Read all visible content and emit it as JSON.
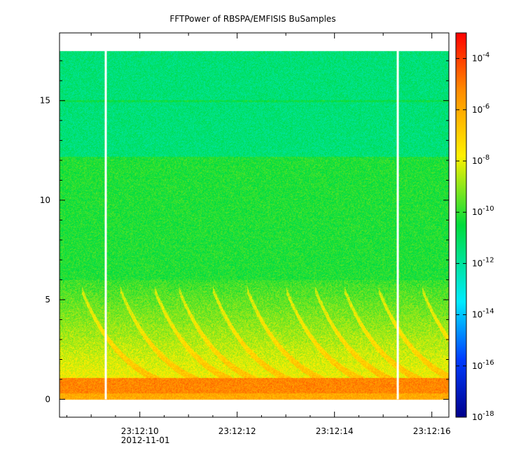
{
  "chart_data": {
    "type": "heatmap",
    "title": "FFTPower of RBSPA/EMFISIS  BuSamples",
    "xlabel": "",
    "ylabel": "",
    "x_ticks": [
      {
        "label": "23:12:10",
        "sublabel": "2012-11-01",
        "t": 10
      },
      {
        "label": "23:12:12",
        "t": 12
      },
      {
        "label": "23:12:14",
        "t": 14
      },
      {
        "label": "23:12:16",
        "t": 16
      }
    ],
    "xlim": [
      8.35,
      16.35
    ],
    "ylim": [
      -0.9,
      18.4
    ],
    "y_ticks": [
      0,
      5,
      10,
      15
    ],
    "colorbar": {
      "scale": "log",
      "range": [
        1e-18,
        0.001
      ],
      "ticks": [
        {
          "base": "10",
          "exp": "-4"
        },
        {
          "base": "10",
          "exp": "-6"
        },
        {
          "base": "10",
          "exp": "-8"
        },
        {
          "base": "10",
          "exp": "-10"
        },
        {
          "base": "10",
          "exp": "-12"
        },
        {
          "base": "10",
          "exp": "-14"
        },
        {
          "base": "10",
          "exp": "-16"
        },
        {
          "base": "10",
          "exp": "-18"
        }
      ]
    },
    "data_gaps_t": [
      9.3,
      15.3
    ],
    "freq_top": 17.5,
    "features": {
      "low_freq_band": {
        "f": [
          0,
          1.1
        ],
        "log_power": -5
      },
      "line": {
        "f": 15,
        "log_power": -9
      },
      "upper_band_edge": 12.2
    }
  }
}
